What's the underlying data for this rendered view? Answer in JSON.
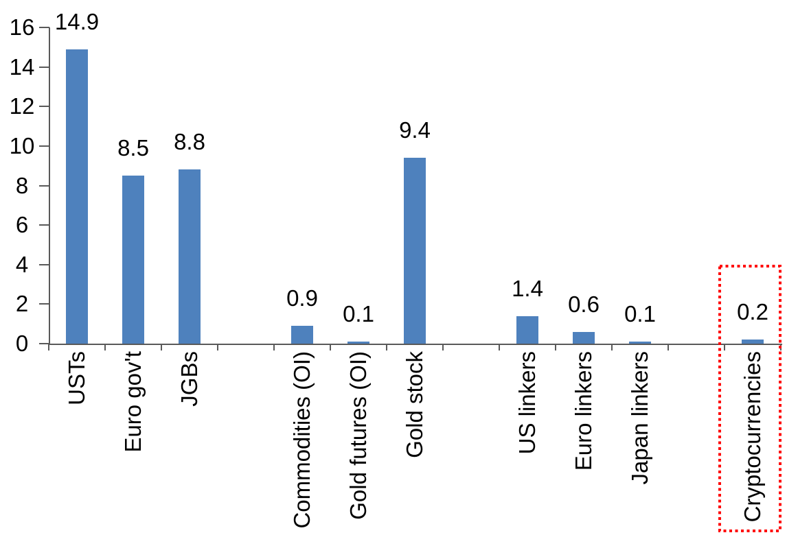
{
  "chart_data": {
    "type": "bar",
    "title": "",
    "xlabel": "",
    "ylabel": "",
    "ylim": [
      0,
      16
    ],
    "y_ticks": [
      "0",
      "2",
      "4",
      "6",
      "8",
      "10",
      "12",
      "14",
      "16"
    ],
    "grid": false,
    "legend": false,
    "n_slots": 13,
    "bar_color": "#4E81BD",
    "axis_color": "#595959",
    "text_color": "#000000",
    "highlight_color": "#FF0000",
    "bars": [
      {
        "label": "USTs",
        "value": 14.9,
        "value_label": "14.9",
        "slot": 0
      },
      {
        "label": "Euro gov't",
        "value": 8.5,
        "value_label": "8.5",
        "slot": 1
      },
      {
        "label": "JGBs",
        "value": 8.8,
        "value_label": "8.8",
        "slot": 2
      },
      {
        "label": "Commodities (OI)",
        "value": 0.9,
        "value_label": "0.9",
        "slot": 4
      },
      {
        "label": "Gold futures (OI)",
        "value": 0.1,
        "value_label": "0.1",
        "slot": 5
      },
      {
        "label": "Gold stock",
        "value": 9.4,
        "value_label": "9.4",
        "slot": 6
      },
      {
        "label": "US linkers",
        "value": 1.4,
        "value_label": "1.4",
        "slot": 8
      },
      {
        "label": "Euro linkers",
        "value": 0.6,
        "value_label": "0.6",
        "slot": 9
      },
      {
        "label": "Japan linkers",
        "value": 0.1,
        "value_label": "0.1",
        "slot": 10
      },
      {
        "label": "Cryptocurrencies",
        "value": 0.2,
        "value_label": "0.2",
        "slot": 12,
        "highlighted": true
      }
    ],
    "highlight": {
      "label": "Cryptocurrencies",
      "style": "red-dotted-rectangle"
    }
  }
}
